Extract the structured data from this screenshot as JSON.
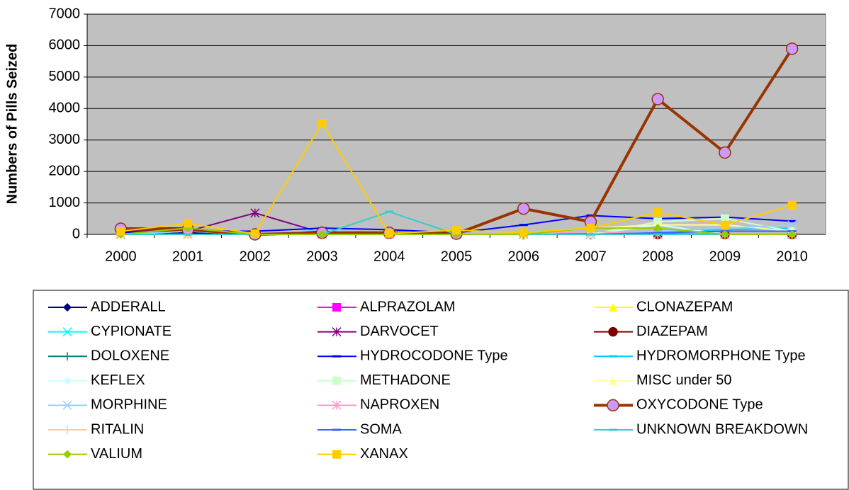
{
  "chart_data": {
    "type": "line",
    "y_label": "Numbers of Pills Seized",
    "categories": [
      "2000",
      "2001",
      "2002",
      "2003",
      "2004",
      "2005",
      "2006",
      "2007",
      "2008",
      "2009",
      "2010"
    ],
    "ylim": [
      0,
      7000
    ],
    "yticks": [
      0,
      1000,
      2000,
      3000,
      4000,
      5000,
      6000,
      7000
    ],
    "grid": true,
    "legend": "bottom",
    "series": [
      {
        "name": "ADDERALL",
        "color": "#000080",
        "marker": "diamond",
        "values": [
          50,
          50,
          0,
          30,
          0,
          0,
          0,
          0,
          0,
          0,
          0
        ]
      },
      {
        "name": "ALPRAZOLAM",
        "color": "#ff00ff",
        "marker": "square",
        "values": [
          0,
          0,
          0,
          0,
          0,
          0,
          0,
          20,
          20,
          0,
          0
        ]
      },
      {
        "name": "CLONAZEPAM",
        "color": "#ffff00",
        "marker": "triangle",
        "values": [
          0,
          100,
          0,
          0,
          0,
          0,
          0,
          0,
          0,
          0,
          0
        ]
      },
      {
        "name": "CYPIONATE",
        "color": "#00ffff",
        "marker": "x",
        "values": [
          0,
          0,
          0,
          0,
          0,
          0,
          0,
          0,
          0,
          0,
          0
        ]
      },
      {
        "name": "DARVOCET",
        "color": "#800080",
        "marker": "star",
        "values": [
          100,
          100,
          680,
          50,
          30,
          0,
          0,
          0,
          0,
          0,
          0
        ]
      },
      {
        "name": "DIAZEPAM",
        "color": "#800000",
        "marker": "circle",
        "values": [
          200,
          200,
          0,
          100,
          50,
          0,
          0,
          0,
          0,
          0,
          0
        ]
      },
      {
        "name": "DOLOXENE",
        "color": "#008080",
        "marker": "plus",
        "values": [
          0,
          0,
          0,
          0,
          0,
          0,
          0,
          0,
          0,
          0,
          0
        ]
      },
      {
        "name": "HYDROCODONE Type",
        "color": "#0000ff",
        "marker": "dash",
        "values": [
          50,
          100,
          100,
          200,
          150,
          50,
          300,
          600,
          500,
          550,
          420
        ]
      },
      {
        "name": "HYDROMORPHONE Type",
        "color": "#00ccff",
        "marker": "dash",
        "values": [
          0,
          0,
          0,
          0,
          0,
          0,
          0,
          0,
          100,
          150,
          200
        ]
      },
      {
        "name": "KEFLEX",
        "color": "#ccffff",
        "marker": "diamond",
        "values": [
          0,
          0,
          0,
          0,
          0,
          0,
          0,
          0,
          300,
          0,
          0
        ]
      },
      {
        "name": "METHADONE",
        "color": "#ccffcc",
        "marker": "square",
        "values": [
          0,
          0,
          0,
          0,
          0,
          0,
          0,
          0,
          400,
          500,
          100
        ]
      },
      {
        "name": "MISC under 50",
        "color": "#ffff99",
        "marker": "triangle",
        "values": [
          0,
          0,
          0,
          0,
          0,
          0,
          0,
          200,
          300,
          300,
          100
        ]
      },
      {
        "name": "MORPHINE",
        "color": "#99ccff",
        "marker": "x",
        "values": [
          0,
          100,
          0,
          150,
          0,
          0,
          0,
          0,
          100,
          200,
          300
        ]
      },
      {
        "name": "NAPROXEN",
        "color": "#ff99cc",
        "marker": "star",
        "values": [
          0,
          0,
          0,
          0,
          0,
          0,
          0,
          100,
          0,
          0,
          0
        ]
      },
      {
        "name": "OXYCODONE Type",
        "color": "#993300",
        "marker": "circle",
        "marker_fill": "#cc99ff",
        "line_width": 4,
        "values": [
          180,
          150,
          0,
          50,
          50,
          20,
          820,
          400,
          4300,
          2600,
          5900
        ]
      },
      {
        "name": "RITALIN",
        "color": "#ffcc99",
        "marker": "plus",
        "values": [
          0,
          0,
          0,
          0,
          0,
          0,
          0,
          0,
          0,
          0,
          0
        ]
      },
      {
        "name": "SOMA",
        "color": "#3366ff",
        "marker": "dash",
        "values": [
          0,
          0,
          0,
          0,
          0,
          0,
          0,
          0,
          50,
          100,
          100
        ]
      },
      {
        "name": "UNKNOWN BREAKDOWN",
        "color": "#33cccc",
        "marker": "dash",
        "values": [
          0,
          0,
          0,
          0,
          720,
          0,
          0,
          0,
          0,
          0,
          0
        ]
      },
      {
        "name": "VALIUM",
        "color": "#99cc00",
        "marker": "diamond",
        "values": [
          0,
          200,
          0,
          0,
          0,
          0,
          0,
          200,
          200,
          0,
          0
        ]
      },
      {
        "name": "XANAX",
        "color": "#ffcc00",
        "marker": "square",
        "values": [
          100,
          350,
          20,
          3530,
          30,
          130,
          60,
          200,
          700,
          300,
          930
        ]
      }
    ]
  }
}
